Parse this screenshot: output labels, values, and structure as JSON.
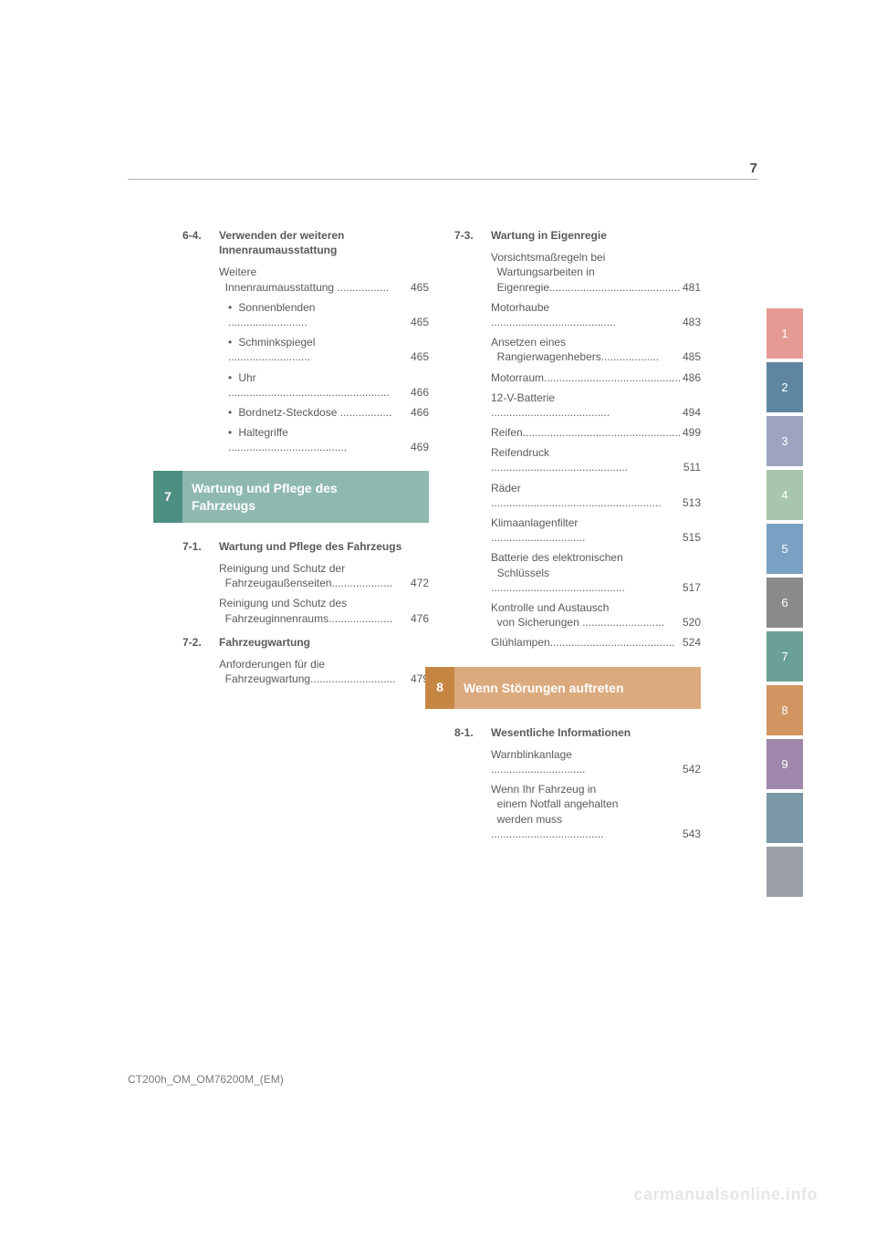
{
  "page_number": "7",
  "footer": "CT200h_OM_OM76200M_(EM)",
  "watermark": "carmanualsonline.info",
  "colors": {
    "chapter7_num": "#4d8f81",
    "chapter7_title": "#8fb9af",
    "chapter8_num": "#c78544",
    "chapter8_title": "#dbaa7e",
    "text": "#5a5a5a"
  },
  "tabs": [
    {
      "label": "1",
      "color": "#e59b93"
    },
    {
      "label": "2",
      "color": "#5f86a0"
    },
    {
      "label": "3",
      "color": "#9da4c0"
    },
    {
      "label": "4",
      "color": "#a7c6ab"
    },
    {
      "label": "5",
      "color": "#7aa1c4"
    },
    {
      "label": "6",
      "color": "#8a8a8a"
    },
    {
      "label": "7",
      "color": "#6aa095"
    },
    {
      "label": "8",
      "color": "#d19562"
    },
    {
      "label": "9",
      "color": "#9e87ab"
    },
    {
      "label": "",
      "color": "#7a98a5"
    },
    {
      "label": "",
      "color": "#9aa0a6"
    }
  ],
  "left": {
    "sec64": {
      "num": "6-4.",
      "title_l1": "Verwenden der weiteren",
      "title_l2": "Innenraumausstattung",
      "e1_l1": "Weitere",
      "e1_l2": "Innenraumausstattung",
      "e1_p": "465",
      "e2": "Sonnenblenden",
      "e2_p": "465",
      "e3": "Schminkspiegel",
      "e3_p": "465",
      "e4": "Uhr",
      "e4_p": "466",
      "e5": "Bordnetz-Steckdose",
      "e5_p": "466",
      "e6": "Haltegriffe",
      "e6_p": "469"
    },
    "chapter7": {
      "num": "7",
      "title_l1": "Wartung und Pflege des",
      "title_l2": "Fahrzeugs"
    },
    "sec71": {
      "num": "7-1.",
      "title": "Wartung und Pflege des Fahrzeugs",
      "e1_l1": "Reinigung und Schutz der",
      "e1_l2": "Fahrzeugaußenseiten",
      "e1_p": "472",
      "e2_l1": "Reinigung und Schutz des",
      "e2_l2": "Fahrzeuginnenraums",
      "e2_p": "476"
    },
    "sec72": {
      "num": "7-2.",
      "title": "Fahrzeugwartung",
      "e1_l1": "Anforderungen für die",
      "e1_l2": "Fahrzeugwartung",
      "e1_p": "479"
    }
  },
  "right": {
    "sec73": {
      "num": "7-3.",
      "title": "Wartung in Eigenregie",
      "e1_l1": "Vorsichtsmaßregeln bei",
      "e1_l2": "Wartungsarbeiten in",
      "e1_l3": "Eigenregie",
      "e1_p": "481",
      "e2": "Motorhaube",
      "e2_p": "483",
      "e3_l1": "Ansetzen eines",
      "e3_l2": "Rangierwagenhebers",
      "e3_p": "485",
      "e4": "Motorraum",
      "e4_p": "486",
      "e5": "12-V-Batterie",
      "e5_p": "494",
      "e6": "Reifen",
      "e6_p": "499",
      "e7": "Reifendruck",
      "e7_p": "511",
      "e8": "Räder",
      "e8_p": "513",
      "e9": "Klimaanlagenfilter",
      "e9_p": "515",
      "e10_l1": "Batterie des elektronischen",
      "e10_l2": "Schlüssels",
      "e10_p": "517",
      "e11_l1": "Kontrolle und Austausch",
      "e11_l2": "von Sicherungen",
      "e11_p": "520",
      "e12": "Glühlampen",
      "e12_p": "524"
    },
    "chapter8": {
      "num": "8",
      "title": "Wenn Störungen auftreten"
    },
    "sec81": {
      "num": "8-1.",
      "title": "Wesentliche Informationen",
      "e1": "Warnblinkanlage",
      "e1_p": "542",
      "e2_l1": "Wenn Ihr Fahrzeug in",
      "e2_l2": "einem Notfall angehalten",
      "e2_l3": "werden muss",
      "e2_p": "543"
    }
  }
}
